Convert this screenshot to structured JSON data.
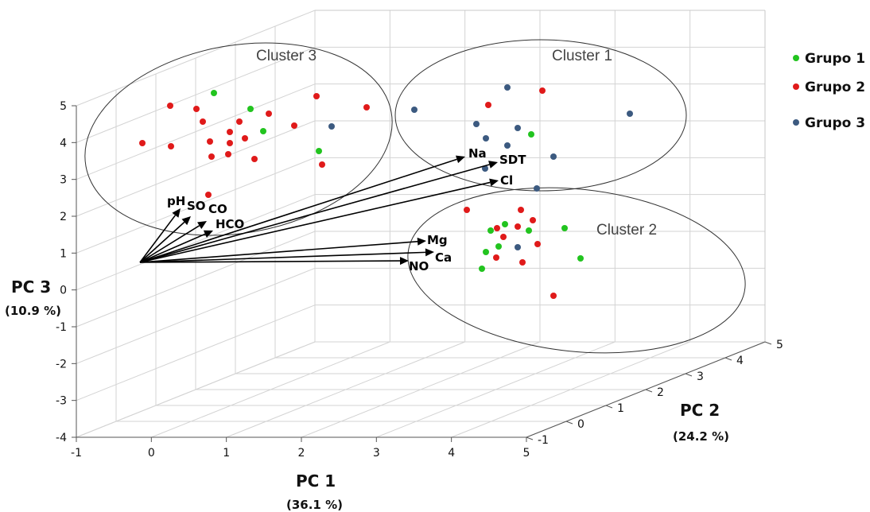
{
  "chart_data": {
    "type": "scatter",
    "subtype": "3d-biplot",
    "axes": {
      "x": {
        "title": "PC 1",
        "percent": "(36.1 %)",
        "range": [
          -1,
          5
        ],
        "ticks": [
          "-1",
          "0",
          "1",
          "2",
          "3",
          "4",
          "5"
        ]
      },
      "y": {
        "title": "PC 2",
        "percent": "(24.2 %)",
        "range": [
          -1,
          5
        ],
        "ticks": [
          "-1",
          "0",
          "1",
          "2",
          "3",
          "4",
          "5"
        ]
      },
      "z": {
        "title": "PC 3",
        "percent": "(10.9 %)",
        "range": [
          -4,
          5
        ],
        "ticks": [
          "-4",
          "-3",
          "-2",
          "-1",
          "0",
          "1",
          "2",
          "3",
          "4",
          "5"
        ]
      }
    },
    "grid": true,
    "legend": {
      "placement": "top-right",
      "entries": [
        {
          "label": "Grupo 1",
          "color": "#22c41f"
        },
        {
          "label": "Grupo 2",
          "color": "#e01a1a"
        },
        {
          "label": "Grupo 3",
          "color": "#3c5a80"
        }
      ]
    },
    "clusters": [
      {
        "label": "Cluster 3"
      },
      {
        "label": "Cluster 1"
      },
      {
        "label": "Cluster 2"
      }
    ],
    "loadings": [
      {
        "label": "pH"
      },
      {
        "label": "SO"
      },
      {
        "label": "CO"
      },
      {
        "label": "HCO"
      },
      {
        "label": "Na"
      },
      {
        "label": "SDT"
      },
      {
        "label": "Cl"
      },
      {
        "label": "Mg"
      },
      {
        "label": "Ca"
      },
      {
        "label": "NO"
      }
    ],
    "series": [
      {
        "name": "Grupo 1",
        "color": "#22c41f",
        "points": 16
      },
      {
        "name": "Grupo 2",
        "color": "#e01a1a",
        "points": 40
      },
      {
        "name": "Grupo 3",
        "color": "#3c5a80",
        "points": 11
      }
    ]
  }
}
